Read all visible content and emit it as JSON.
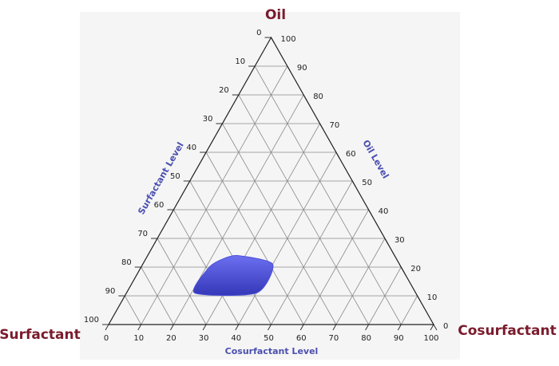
{
  "chart_data": {
    "type": "ternary",
    "grid": true,
    "axes": {
      "oil": {
        "name": "Oil",
        "title": "Oil Level",
        "ticks": [
          0,
          10,
          20,
          30,
          40,
          50,
          60,
          70,
          80,
          90,
          100
        ]
      },
      "surfactant": {
        "name": "Surfactant",
        "title": "Surfactant Level",
        "ticks": [
          0,
          10,
          20,
          30,
          40,
          50,
          60,
          70,
          80,
          90,
          100
        ]
      },
      "cosurfactant": {
        "name": "Cosurfactant",
        "title": "Cosurfactant Level",
        "ticks": [
          0,
          10,
          20,
          30,
          40,
          50,
          60,
          70,
          80,
          90,
          100
        ]
      }
    },
    "regions": [
      {
        "color": "#4b4fd8",
        "oil": [
          11,
          11,
          21,
          24,
          23,
          20
        ],
        "surfactant": [
          68,
          49,
          39,
          48,
          53,
          59
        ],
        "cosurfactant": [
          21,
          40,
          40,
          28,
          24,
          21
        ]
      }
    ]
  }
}
